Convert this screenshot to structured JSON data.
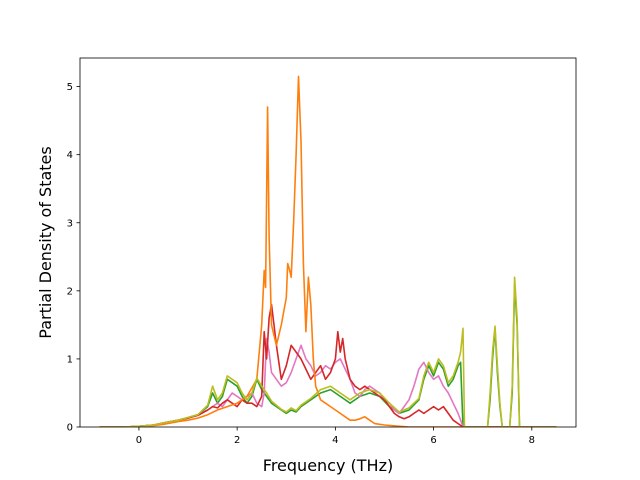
{
  "chart_data": {
    "type": "line",
    "title": "",
    "xlabel": "Frequency (THz)",
    "ylabel": "Partial Density of States",
    "xlim": [
      -1.2,
      8.9
    ],
    "ylim": [
      0,
      5.42
    ],
    "xticks": [
      0,
      2,
      4,
      6,
      8
    ],
    "yticks": [
      0,
      1,
      2,
      3,
      4,
      5
    ],
    "grid": false,
    "legend": "none",
    "series": [
      {
        "color": "#2ca02c",
        "points": [
          [
            -0.8,
            0
          ],
          [
            -0.3,
            0
          ],
          [
            0,
            0.01
          ],
          [
            0.3,
            0.03
          ],
          [
            0.5,
            0.06
          ],
          [
            0.8,
            0.1
          ],
          [
            1.0,
            0.14
          ],
          [
            1.2,
            0.18
          ],
          [
            1.4,
            0.3
          ],
          [
            1.5,
            0.5
          ],
          [
            1.6,
            0.35
          ],
          [
            1.7,
            0.45
          ],
          [
            1.8,
            0.7
          ],
          [
            1.9,
            0.65
          ],
          [
            2.0,
            0.6
          ],
          [
            2.1,
            0.45
          ],
          [
            2.2,
            0.35
          ],
          [
            2.3,
            0.45
          ],
          [
            2.4,
            0.7
          ],
          [
            2.5,
            0.55
          ],
          [
            2.6,
            0.45
          ],
          [
            2.7,
            0.35
          ],
          [
            2.8,
            0.3
          ],
          [
            2.9,
            0.25
          ],
          [
            3.0,
            0.2
          ],
          [
            3.1,
            0.25
          ],
          [
            3.2,
            0.22
          ],
          [
            3.3,
            0.3
          ],
          [
            3.5,
            0.4
          ],
          [
            3.7,
            0.5
          ],
          [
            3.9,
            0.55
          ],
          [
            4.1,
            0.45
          ],
          [
            4.3,
            0.35
          ],
          [
            4.5,
            0.45
          ],
          [
            4.7,
            0.5
          ],
          [
            4.9,
            0.45
          ],
          [
            5.1,
            0.3
          ],
          [
            5.3,
            0.2
          ],
          [
            5.5,
            0.25
          ],
          [
            5.7,
            0.4
          ],
          [
            5.8,
            0.7
          ],
          [
            5.9,
            0.9
          ],
          [
            6.0,
            0.75
          ],
          [
            6.1,
            0.95
          ],
          [
            6.2,
            0.85
          ],
          [
            6.3,
            0.6
          ],
          [
            6.4,
            0.7
          ],
          [
            6.5,
            0.9
          ],
          [
            6.55,
            0.95
          ],
          [
            6.6,
            0
          ],
          [
            7.1,
            0
          ],
          [
            7.15,
            0.4
          ],
          [
            7.2,
            1.0
          ],
          [
            7.25,
            1.45
          ],
          [
            7.3,
            0.8
          ],
          [
            7.35,
            0.3
          ],
          [
            7.4,
            0
          ],
          [
            7.55,
            0
          ],
          [
            7.6,
            0.5
          ],
          [
            7.65,
            2.1
          ],
          [
            7.7,
            1.5
          ],
          [
            7.75,
            0
          ],
          [
            8.5,
            0
          ]
        ]
      },
      {
        "color": "#e377c2",
        "points": [
          [
            -0.8,
            0
          ],
          [
            -0.3,
            0
          ],
          [
            0,
            0.01
          ],
          [
            0.3,
            0.03
          ],
          [
            0.5,
            0.06
          ],
          [
            0.8,
            0.1
          ],
          [
            1.0,
            0.13
          ],
          [
            1.2,
            0.18
          ],
          [
            1.4,
            0.25
          ],
          [
            1.5,
            0.3
          ],
          [
            1.6,
            0.35
          ],
          [
            1.7,
            0.3
          ],
          [
            1.8,
            0.4
          ],
          [
            1.9,
            0.5
          ],
          [
            2.0,
            0.45
          ],
          [
            2.1,
            0.4
          ],
          [
            2.2,
            0.45
          ],
          [
            2.3,
            0.5
          ],
          [
            2.4,
            0.35
          ],
          [
            2.5,
            0.3
          ],
          [
            2.55,
            0.5
          ],
          [
            2.6,
            1.3
          ],
          [
            2.65,
            1.1
          ],
          [
            2.7,
            0.8
          ],
          [
            2.8,
            0.7
          ],
          [
            2.9,
            0.6
          ],
          [
            3.0,
            0.65
          ],
          [
            3.1,
            0.8
          ],
          [
            3.2,
            1.0
          ],
          [
            3.3,
            1.2
          ],
          [
            3.4,
            1.0
          ],
          [
            3.5,
            0.9
          ],
          [
            3.6,
            0.75
          ],
          [
            3.7,
            0.8
          ],
          [
            3.8,
            0.9
          ],
          [
            3.9,
            0.85
          ],
          [
            4.0,
            0.95
          ],
          [
            4.1,
            1.0
          ],
          [
            4.2,
            0.85
          ],
          [
            4.3,
            0.7
          ],
          [
            4.4,
            0.5
          ],
          [
            4.5,
            0.45
          ],
          [
            4.6,
            0.55
          ],
          [
            4.7,
            0.6
          ],
          [
            4.8,
            0.55
          ],
          [
            4.9,
            0.5
          ],
          [
            5.0,
            0.4
          ],
          [
            5.1,
            0.35
          ],
          [
            5.2,
            0.25
          ],
          [
            5.3,
            0.2
          ],
          [
            5.4,
            0.3
          ],
          [
            5.5,
            0.4
          ],
          [
            5.6,
            0.6
          ],
          [
            5.7,
            0.85
          ],
          [
            5.8,
            0.95
          ],
          [
            5.9,
            0.8
          ],
          [
            6.0,
            0.7
          ],
          [
            6.1,
            0.75
          ],
          [
            6.2,
            0.6
          ],
          [
            6.3,
            0.5
          ],
          [
            6.4,
            0.35
          ],
          [
            6.5,
            0.2
          ],
          [
            6.55,
            0.1
          ],
          [
            6.6,
            0
          ],
          [
            8.5,
            0
          ]
        ]
      },
      {
        "color": "#d62728",
        "points": [
          [
            -0.8,
            0
          ],
          [
            -0.3,
            0
          ],
          [
            0,
            0.01
          ],
          [
            0.3,
            0.03
          ],
          [
            0.5,
            0.06
          ],
          [
            0.8,
            0.1
          ],
          [
            1.0,
            0.13
          ],
          [
            1.2,
            0.17
          ],
          [
            1.4,
            0.25
          ],
          [
            1.5,
            0.3
          ],
          [
            1.6,
            0.28
          ],
          [
            1.7,
            0.35
          ],
          [
            1.8,
            0.4
          ],
          [
            1.9,
            0.35
          ],
          [
            2.0,
            0.3
          ],
          [
            2.1,
            0.4
          ],
          [
            2.2,
            0.35
          ],
          [
            2.3,
            0.35
          ],
          [
            2.4,
            0.3
          ],
          [
            2.5,
            0.45
          ],
          [
            2.55,
            1.4
          ],
          [
            2.6,
            1.0
          ],
          [
            2.65,
            1.6
          ],
          [
            2.7,
            1.8
          ],
          [
            2.75,
            1.5
          ],
          [
            2.8,
            1.2
          ],
          [
            2.9,
            0.7
          ],
          [
            3.0,
            0.9
          ],
          [
            3.1,
            1.2
          ],
          [
            3.2,
            1.1
          ],
          [
            3.3,
            1.0
          ],
          [
            3.4,
            0.85
          ],
          [
            3.5,
            0.7
          ],
          [
            3.6,
            0.8
          ],
          [
            3.7,
            0.9
          ],
          [
            3.8,
            0.7
          ],
          [
            3.9,
            0.8
          ],
          [
            4.0,
            1.0
          ],
          [
            4.05,
            1.4
          ],
          [
            4.1,
            1.1
          ],
          [
            4.15,
            1.3
          ],
          [
            4.2,
            1.0
          ],
          [
            4.3,
            0.7
          ],
          [
            4.4,
            0.6
          ],
          [
            4.5,
            0.55
          ],
          [
            4.6,
            0.6
          ],
          [
            4.7,
            0.55
          ],
          [
            4.8,
            0.5
          ],
          [
            4.9,
            0.45
          ],
          [
            5.0,
            0.4
          ],
          [
            5.1,
            0.3
          ],
          [
            5.2,
            0.2
          ],
          [
            5.3,
            0.15
          ],
          [
            5.4,
            0.12
          ],
          [
            5.5,
            0.15
          ],
          [
            5.6,
            0.2
          ],
          [
            5.7,
            0.25
          ],
          [
            5.8,
            0.2
          ],
          [
            5.9,
            0.25
          ],
          [
            6.0,
            0.3
          ],
          [
            6.1,
            0.25
          ],
          [
            6.2,
            0.3
          ],
          [
            6.3,
            0.2
          ],
          [
            6.4,
            0.1
          ],
          [
            6.5,
            0.05
          ],
          [
            6.6,
            0
          ],
          [
            8.5,
            0
          ]
        ]
      },
      {
        "color": "#ff7f0e",
        "points": [
          [
            -0.8,
            0
          ],
          [
            -0.3,
            0
          ],
          [
            0,
            0.01
          ],
          [
            0.3,
            0.02
          ],
          [
            0.5,
            0.04
          ],
          [
            0.8,
            0.08
          ],
          [
            1.0,
            0.1
          ],
          [
            1.2,
            0.13
          ],
          [
            1.4,
            0.18
          ],
          [
            1.6,
            0.25
          ],
          [
            1.8,
            0.3
          ],
          [
            2.0,
            0.35
          ],
          [
            2.2,
            0.45
          ],
          [
            2.4,
            0.7
          ],
          [
            2.5,
            1.5
          ],
          [
            2.55,
            2.3
          ],
          [
            2.58,
            2.05
          ],
          [
            2.62,
            4.7
          ],
          [
            2.65,
            2.8
          ],
          [
            2.7,
            1.5
          ],
          [
            2.8,
            1.2
          ],
          [
            2.9,
            1.5
          ],
          [
            3.0,
            1.9
          ],
          [
            3.03,
            2.4
          ],
          [
            3.07,
            2.3
          ],
          [
            3.1,
            2.2
          ],
          [
            3.15,
            3.0
          ],
          [
            3.2,
            4.0
          ],
          [
            3.25,
            5.15
          ],
          [
            3.3,
            4.2
          ],
          [
            3.35,
            2.4
          ],
          [
            3.4,
            1.4
          ],
          [
            3.45,
            2.2
          ],
          [
            3.5,
            1.8
          ],
          [
            3.55,
            1.0
          ],
          [
            3.6,
            0.6
          ],
          [
            3.7,
            0.4
          ],
          [
            3.8,
            0.35
          ],
          [
            3.9,
            0.3
          ],
          [
            4.0,
            0.25
          ],
          [
            4.1,
            0.2
          ],
          [
            4.2,
            0.15
          ],
          [
            4.3,
            0.1
          ],
          [
            4.4,
            0.1
          ],
          [
            4.5,
            0.12
          ],
          [
            4.6,
            0.15
          ],
          [
            4.7,
            0.1
          ],
          [
            4.8,
            0.05
          ],
          [
            5.0,
            0.03
          ],
          [
            5.5,
            0
          ],
          [
            8.5,
            0
          ]
        ]
      },
      {
        "color": "#bcbd22",
        "points": [
          [
            -0.8,
            0
          ],
          [
            -0.3,
            0
          ],
          [
            0,
            0.01
          ],
          [
            0.3,
            0.03
          ],
          [
            0.5,
            0.06
          ],
          [
            0.8,
            0.1
          ],
          [
            1.0,
            0.14
          ],
          [
            1.2,
            0.18
          ],
          [
            1.4,
            0.32
          ],
          [
            1.5,
            0.6
          ],
          [
            1.6,
            0.4
          ],
          [
            1.7,
            0.5
          ],
          [
            1.8,
            0.75
          ],
          [
            1.9,
            0.7
          ],
          [
            2.0,
            0.65
          ],
          [
            2.1,
            0.5
          ],
          [
            2.2,
            0.4
          ],
          [
            2.3,
            0.5
          ],
          [
            2.4,
            0.72
          ],
          [
            2.5,
            0.6
          ],
          [
            2.6,
            0.5
          ],
          [
            2.7,
            0.38
          ],
          [
            2.8,
            0.32
          ],
          [
            2.9,
            0.26
          ],
          [
            3.0,
            0.22
          ],
          [
            3.1,
            0.28
          ],
          [
            3.2,
            0.24
          ],
          [
            3.3,
            0.32
          ],
          [
            3.5,
            0.42
          ],
          [
            3.7,
            0.55
          ],
          [
            3.9,
            0.6
          ],
          [
            4.1,
            0.5
          ],
          [
            4.3,
            0.4
          ],
          [
            4.5,
            0.5
          ],
          [
            4.7,
            0.55
          ],
          [
            4.9,
            0.5
          ],
          [
            5.1,
            0.35
          ],
          [
            5.3,
            0.22
          ],
          [
            5.5,
            0.28
          ],
          [
            5.7,
            0.42
          ],
          [
            5.8,
            0.75
          ],
          [
            5.9,
            0.95
          ],
          [
            6.0,
            0.8
          ],
          [
            6.1,
            1.0
          ],
          [
            6.2,
            0.9
          ],
          [
            6.3,
            0.65
          ],
          [
            6.4,
            0.75
          ],
          [
            6.5,
            0.95
          ],
          [
            6.55,
            1.1
          ],
          [
            6.6,
            1.45
          ],
          [
            6.63,
            0
          ],
          [
            7.1,
            0
          ],
          [
            7.15,
            0.5
          ],
          [
            7.2,
            1.1
          ],
          [
            7.25,
            1.48
          ],
          [
            7.3,
            0.9
          ],
          [
            7.35,
            0.35
          ],
          [
            7.4,
            0
          ],
          [
            7.55,
            0
          ],
          [
            7.6,
            0.6
          ],
          [
            7.65,
            2.2
          ],
          [
            7.7,
            1.6
          ],
          [
            7.75,
            0
          ],
          [
            8.5,
            0
          ]
        ]
      }
    ]
  }
}
